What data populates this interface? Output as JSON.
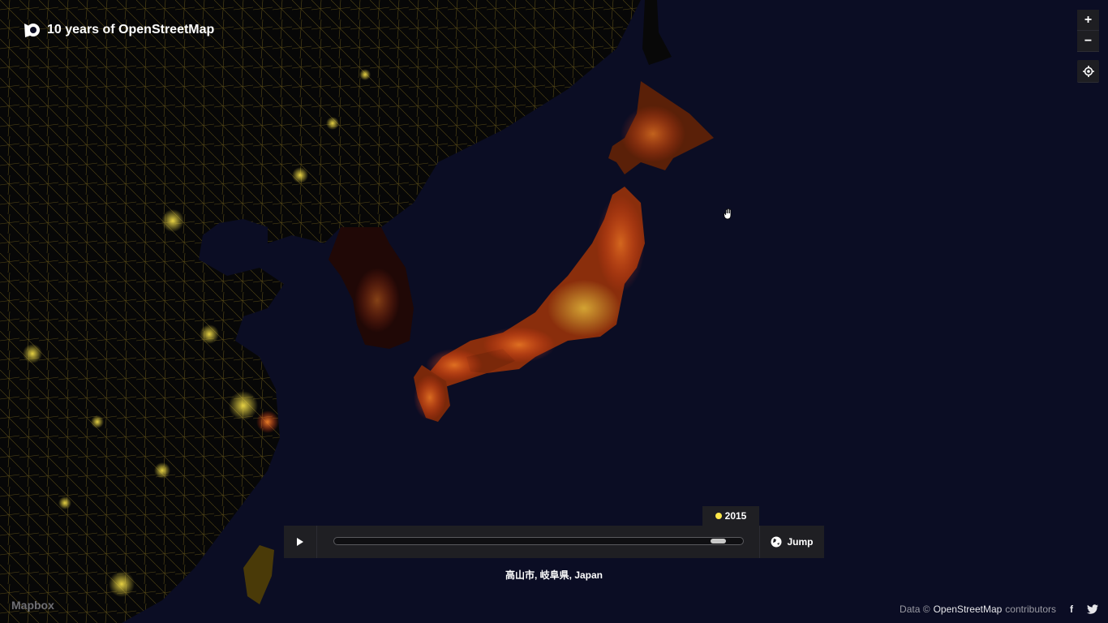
{
  "app": {
    "title": "10 years of OpenStreetMap"
  },
  "controls": {
    "zoom_in": "+",
    "zoom_out": "−",
    "locate_icon": "crosshair-icon"
  },
  "timeline": {
    "year": "2015",
    "year_dot_color": "#ffe84a",
    "progress": 0.96,
    "jump_label": "Jump",
    "play_icon": "play-icon",
    "jump_icon": "globe-icon"
  },
  "location": {
    "label": "高山市, 岐阜県, Japan"
  },
  "footer": {
    "mapbox": "Mapbox",
    "attribution_prefix": "Data ©",
    "attribution_link": "OpenStreetMap",
    "attribution_suffix": "contributors",
    "facebook": "f",
    "twitter": "twitter-icon"
  },
  "colors": {
    "ocean": "#0b0d24",
    "land": "#050505",
    "road_old": "#ffe84a",
    "road_new": "#ff6a2a"
  }
}
